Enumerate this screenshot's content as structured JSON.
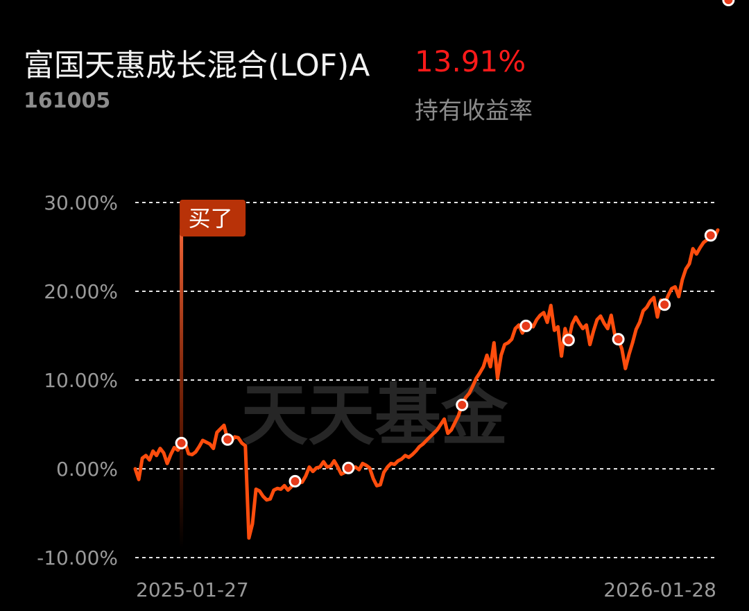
{
  "header": {
    "fund_name": "富国天惠成长混合(LOF)A",
    "fund_code": "161005",
    "return_value": "13.91%",
    "return_label": "持有收益率"
  },
  "colors": {
    "line": "#ff4d0d",
    "return_positive": "#ff1a1a",
    "buy_tag": "#b83208",
    "marker": "#e63a1a"
  },
  "watermark": "天天基金",
  "chart_data": {
    "type": "line",
    "ylim": [
      -10,
      30
    ],
    "y_ticks": [
      30,
      20,
      10,
      0,
      -10
    ],
    "y_tick_labels": [
      "30.00%",
      "20.00%",
      "10.00%",
      "0.00%",
      "-10.00%"
    ],
    "x_tick_labels": [
      "2025-01-27",
      "2026-01-28"
    ],
    "grid": true,
    "buy_marker": {
      "label": "买了",
      "index": 13
    },
    "series": [
      {
        "values": [
          0.0,
          -1.2,
          1.2,
          1.5,
          1.0,
          2.0,
          1.5,
          2.3,
          1.8,
          0.6,
          1.6,
          2.4,
          2.1,
          2.9,
          3.0,
          1.7,
          1.6,
          1.9,
          2.5,
          3.2,
          3.0,
          2.8,
          2.3,
          4.1,
          4.5,
          4.9,
          3.3,
          3.1,
          3.6,
          3.5,
          2.9,
          2.6,
          -7.8,
          -6.2,
          -2.3,
          -2.5,
          -3.1,
          -3.5,
          -3.4,
          -2.4,
          -2.2,
          -2.3,
          -1.9,
          -2.4,
          -2.0,
          -1.4,
          -1.6,
          -1.5,
          -0.8,
          0.2,
          -0.3,
          0.1,
          0.2,
          0.8,
          0.2,
          0.3,
          0.9,
          0.2,
          -0.6,
          -0.4,
          0.1,
          0.0,
          0.2,
          -0.1,
          0.6,
          0.4,
          0.1,
          -1.1,
          -1.9,
          -1.8,
          -0.4,
          0.2,
          0.6,
          0.5,
          0.9,
          1.1,
          1.5,
          1.3,
          1.6,
          2.0,
          2.5,
          2.8,
          3.2,
          3.6,
          4.0,
          4.4,
          5.0,
          5.6,
          4.0,
          4.4,
          5.2,
          6.0,
          7.2,
          8.0,
          8.5,
          9.3,
          10.2,
          10.8,
          11.5,
          12.8,
          11.5,
          14.2,
          10.2,
          12.8,
          14.0,
          14.2,
          14.6,
          15.8,
          16.2,
          15.3,
          16.1,
          16.4,
          16.0,
          16.8,
          17.3,
          17.6,
          16.5,
          18.4,
          15.6,
          16.0,
          12.7,
          15.8,
          14.5,
          16.3,
          17.1,
          16.4,
          15.8,
          16.2,
          14.0,
          15.5,
          16.8,
          17.2,
          16.4,
          15.8,
          17.3,
          15.1,
          14.6,
          13.5,
          11.3,
          12.9,
          14.2,
          15.7,
          16.5,
          17.8,
          18.2,
          18.9,
          19.3,
          17.1,
          19.0,
          18.5,
          19.5,
          20.3,
          20.5,
          19.4,
          21.3,
          22.5,
          23.1,
          24.8,
          24.2,
          24.9,
          25.5,
          25.8,
          26.3,
          26.0,
          26.9
        ]
      }
    ],
    "trade_marker_indices": [
      13,
      26,
      45,
      60,
      92,
      110,
      122,
      136,
      149,
      162,
      167
    ]
  }
}
